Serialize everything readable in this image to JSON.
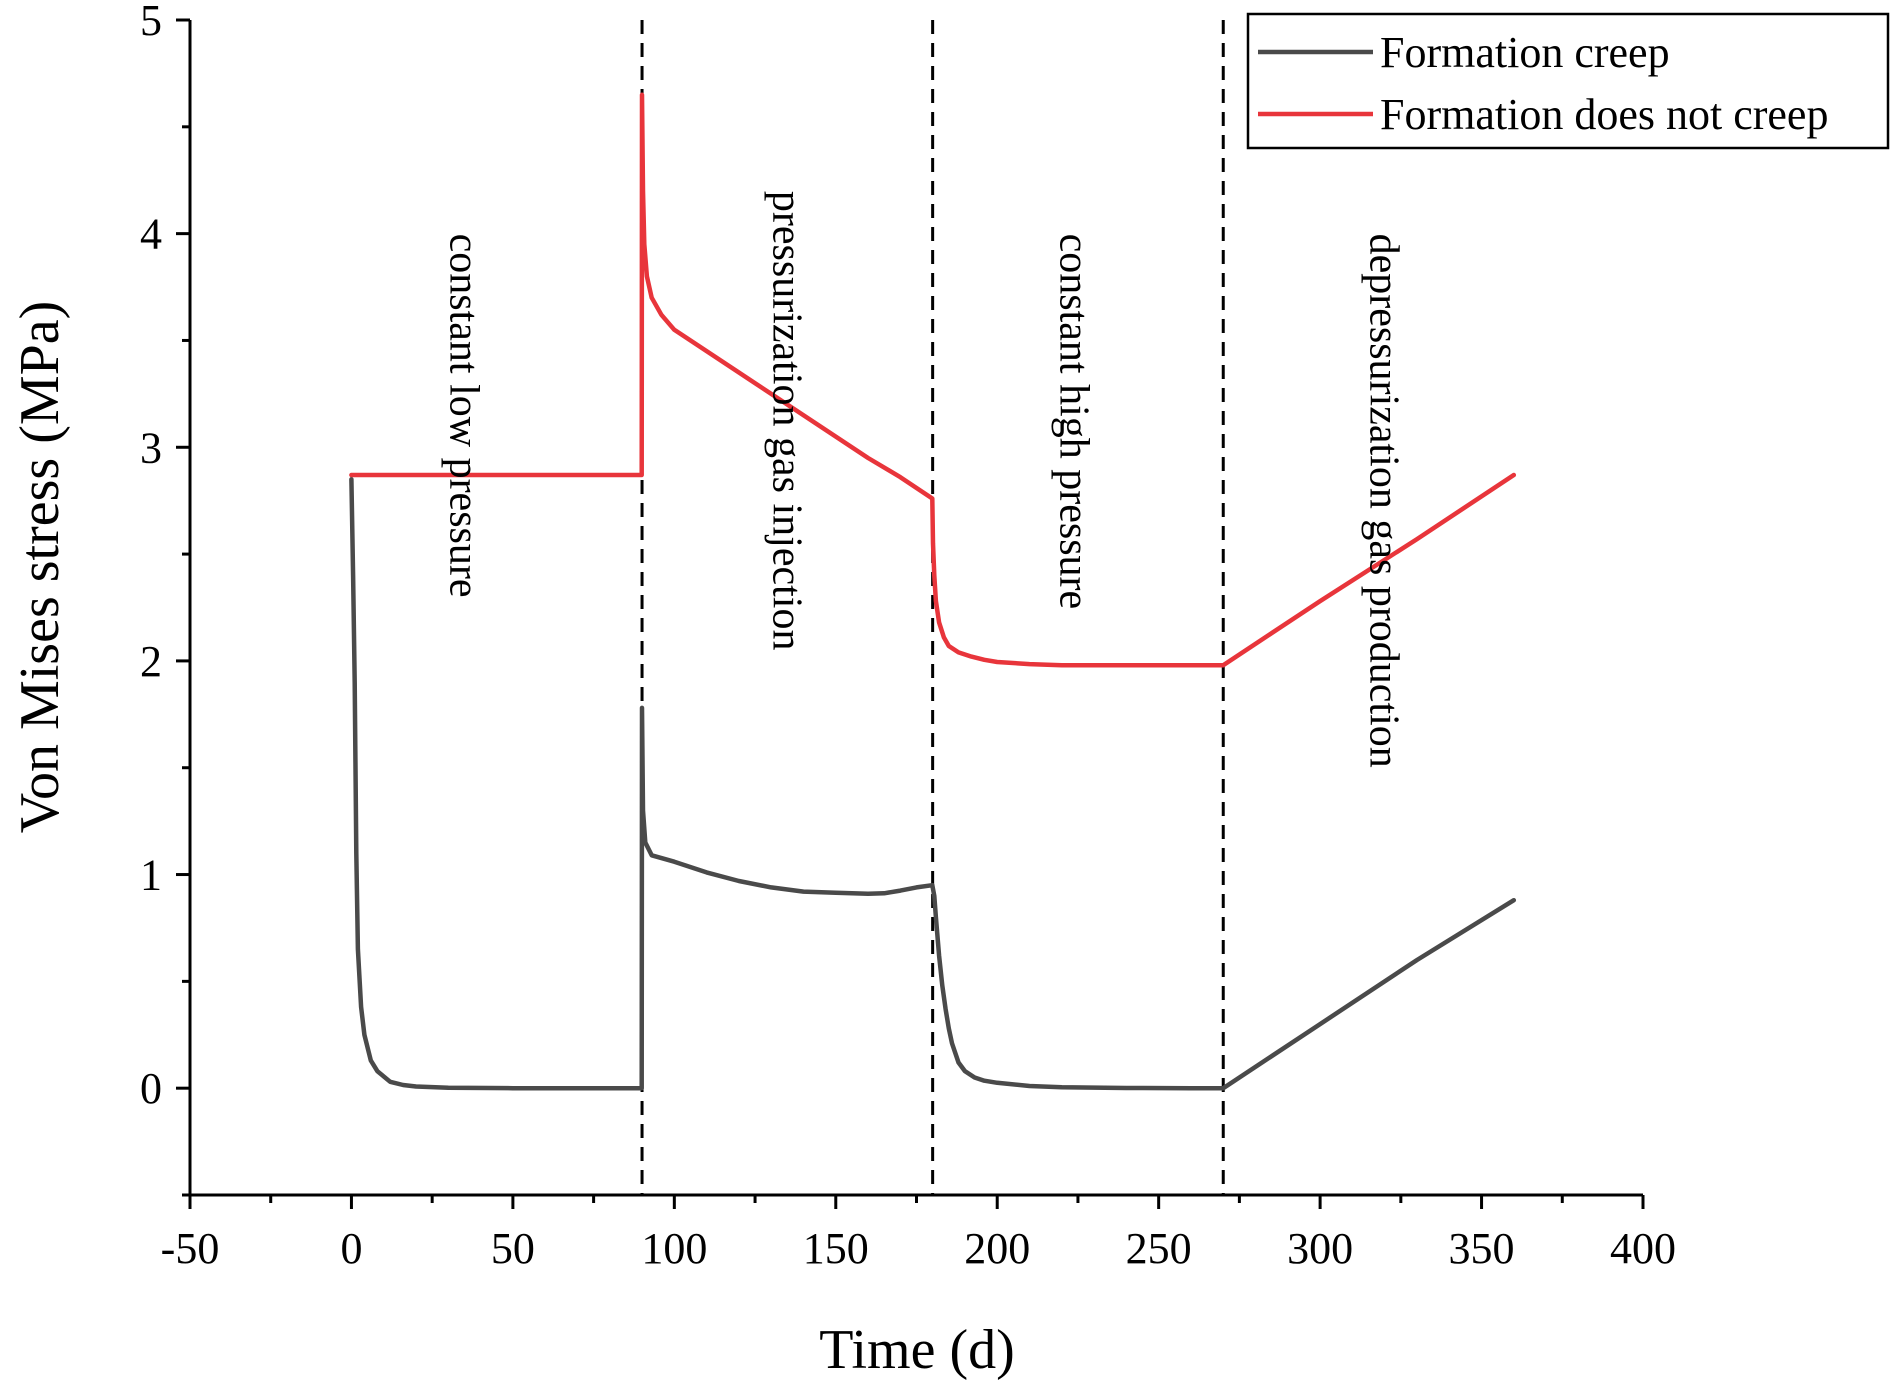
{
  "chart_data": {
    "type": "line",
    "title": "",
    "xlabel": "Time (d)",
    "ylabel": "Von Mises stress (MPa)",
    "xlim": [
      -50,
      400
    ],
    "ylim": [
      -0.5,
      5
    ],
    "xticks": [
      -50,
      0,
      50,
      100,
      150,
      200,
      250,
      300,
      350,
      400
    ],
    "xtick_labels": [
      "-50",
      "0",
      "50",
      "100",
      "150",
      "200",
      "250",
      "300",
      "350",
      "400"
    ],
    "yticks": [
      0,
      1,
      2,
      3,
      4,
      5
    ],
    "ytick_labels": [
      "0",
      "1",
      "2",
      "3",
      "4",
      "5"
    ],
    "grid": false,
    "legend_position": "top-right",
    "phase_boundaries": [
      90,
      180,
      270
    ],
    "annotations": [
      {
        "text": "constant low pressure",
        "x": 35,
        "y": 4.0
      },
      {
        "text": "pressurization gas injection",
        "x": 135,
        "y": 4.2
      },
      {
        "text": "constant high pressure",
        "x": 224,
        "y": 4.0
      },
      {
        "text": "depressurization gas production",
        "x": 320,
        "y": 4.0
      }
    ],
    "series": [
      {
        "name": "Formation creep",
        "color": "#4a4a4a",
        "x": [
          0,
          0.5,
          1,
          1.5,
          2,
          3,
          4,
          6,
          8,
          12,
          16,
          20,
          30,
          50,
          70,
          89.9,
          90,
          90.3,
          91,
          93,
          100,
          110,
          120,
          130,
          140,
          150,
          160,
          165,
          170,
          175,
          179.9,
          180.5,
          181,
          182,
          183,
          184,
          185,
          186,
          188,
          190,
          193,
          196,
          200,
          210,
          220,
          240,
          260,
          270,
          300,
          330,
          360
        ],
        "values": [
          2.85,
          2.4,
          1.9,
          1.1,
          0.65,
          0.38,
          0.25,
          0.13,
          0.08,
          0.03,
          0.015,
          0.008,
          0.002,
          0,
          0,
          0,
          1.78,
          1.3,
          1.15,
          1.09,
          1.06,
          1.01,
          0.97,
          0.94,
          0.92,
          0.915,
          0.91,
          0.912,
          0.925,
          0.94,
          0.95,
          0.9,
          0.8,
          0.62,
          0.48,
          0.37,
          0.28,
          0.21,
          0.12,
          0.08,
          0.05,
          0.035,
          0.025,
          0.01,
          0.004,
          0.001,
          0,
          0,
          0.3,
          0.6,
          0.88
        ]
      },
      {
        "name": "Formation does not creep",
        "color": "#e8353b",
        "x": [
          0,
          89.9,
          90,
          90.3,
          90.7,
          91.5,
          93,
          96,
          100,
          110,
          120,
          130,
          140,
          150,
          160,
          170,
          179.9,
          180.1,
          180.5,
          181,
          182,
          183.5,
          185,
          188,
          192,
          196,
          200,
          210,
          220,
          240,
          270,
          300,
          330,
          360
        ],
        "values": [
          2.87,
          2.87,
          4.65,
          4.2,
          3.95,
          3.8,
          3.7,
          3.62,
          3.55,
          3.45,
          3.35,
          3.25,
          3.15,
          3.05,
          2.95,
          2.86,
          2.76,
          2.55,
          2.4,
          2.28,
          2.18,
          2.11,
          2.07,
          2.04,
          2.02,
          2.005,
          1.995,
          1.985,
          1.98,
          1.98,
          1.98,
          2.28,
          2.57,
          2.87
        ]
      }
    ]
  }
}
